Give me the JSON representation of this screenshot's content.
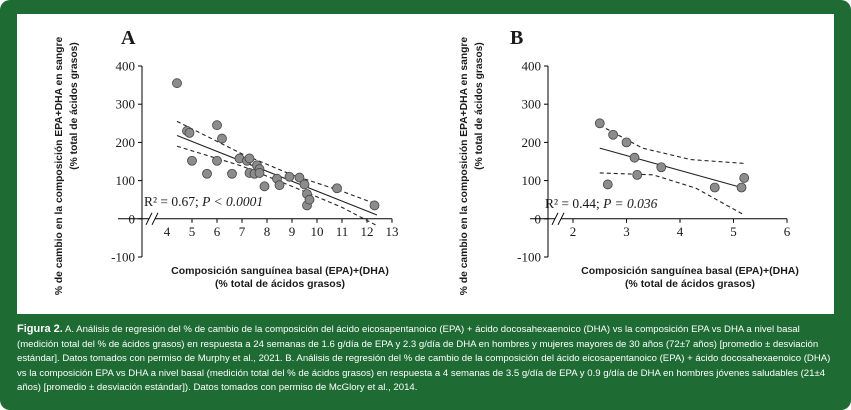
{
  "colors": {
    "border": "#1e6b34",
    "panel": "#ffffff",
    "point_fill": "#8c8c8c",
    "point_stroke": "#444444",
    "line": "#222222"
  },
  "chart_data": [
    {
      "type": "scatter",
      "panel_label": "A",
      "xlabel_line1": "Composición sanguínea basal (EPA)+(DHA)",
      "xlabel_line2": "(% total de ácidos grasos)",
      "ylabel_line1": "% de cambio en la composición EPA+DHA en sangre",
      "ylabel_line2": "(% total de ácidos grasos)",
      "xlim": [
        4,
        13
      ],
      "ylim": [
        -100,
        400
      ],
      "x_ticks": [
        "4",
        "5",
        "6",
        "7",
        "8",
        "9",
        "10",
        "11",
        "12",
        "13"
      ],
      "y_ticks": [
        "-100",
        "0",
        "100",
        "200",
        "300",
        "400"
      ],
      "axis_break": true,
      "annotation_r2": "R² = 0.67; ",
      "annotation_p": "P < 0.0001",
      "points": [
        {
          "x": 4.4,
          "y": 355
        },
        {
          "x": 4.8,
          "y": 230
        },
        {
          "x": 4.9,
          "y": 225
        },
        {
          "x": 5.0,
          "y": 152
        },
        {
          "x": 5.6,
          "y": 118
        },
        {
          "x": 6.0,
          "y": 245
        },
        {
          "x": 6.0,
          "y": 152
        },
        {
          "x": 6.2,
          "y": 210
        },
        {
          "x": 6.6,
          "y": 118
        },
        {
          "x": 6.9,
          "y": 158
        },
        {
          "x": 7.2,
          "y": 152
        },
        {
          "x": 7.3,
          "y": 158
        },
        {
          "x": 7.3,
          "y": 120
        },
        {
          "x": 7.5,
          "y": 118
        },
        {
          "x": 7.6,
          "y": 140
        },
        {
          "x": 7.7,
          "y": 130
        },
        {
          "x": 7.7,
          "y": 120
        },
        {
          "x": 7.9,
          "y": 85
        },
        {
          "x": 8.4,
          "y": 105
        },
        {
          "x": 8.5,
          "y": 88
        },
        {
          "x": 8.9,
          "y": 110
        },
        {
          "x": 9.3,
          "y": 108
        },
        {
          "x": 9.5,
          "y": 90
        },
        {
          "x": 9.6,
          "y": 65
        },
        {
          "x": 9.6,
          "y": 35
        },
        {
          "x": 9.7,
          "y": 50
        },
        {
          "x": 10.8,
          "y": 80
        },
        {
          "x": 12.3,
          "y": 35
        }
      ],
      "fit": {
        "x": [
          4.4,
          12.4
        ],
        "y": [
          218,
          10
        ]
      },
      "ci_upper": {
        "x": [
          4.4,
          7.0,
          9.0,
          11.0,
          12.4
        ],
        "y": [
          255,
          170,
          115,
          72,
          38
        ]
      },
      "ci_lower": {
        "x": [
          4.4,
          7.0,
          9.0,
          11.0,
          12.4
        ],
        "y": [
          190,
          138,
          85,
          30,
          -18
        ]
      }
    },
    {
      "type": "scatter",
      "panel_label": "B",
      "xlabel_line1": "Composición sanguínea basal (EPA)+(DHA)",
      "xlabel_line2": "(% total de ácidos grasos)",
      "ylabel_line1": "% de cambio en la composición EPA+DHA en sangre",
      "ylabel_line2": "(% total de ácidos grasos)",
      "xlim": [
        2,
        6
      ],
      "ylim": [
        -100,
        400
      ],
      "x_ticks": [
        "2",
        "3",
        "4",
        "5",
        "6"
      ],
      "y_ticks": [
        "-100",
        "0",
        "100",
        "200",
        "300",
        "400"
      ],
      "axis_break": true,
      "annotation_r2": "R² = 0.44; ",
      "annotation_p": "P = 0.036",
      "points": [
        {
          "x": 2.5,
          "y": 250
        },
        {
          "x": 2.75,
          "y": 220
        },
        {
          "x": 3.0,
          "y": 200
        },
        {
          "x": 3.15,
          "y": 160
        },
        {
          "x": 3.2,
          "y": 115
        },
        {
          "x": 3.65,
          "y": 135
        },
        {
          "x": 2.65,
          "y": 90
        },
        {
          "x": 4.65,
          "y": 82
        },
        {
          "x": 5.15,
          "y": 82
        },
        {
          "x": 5.2,
          "y": 107
        }
      ],
      "fit": {
        "x": [
          2.5,
          5.2
        ],
        "y": [
          185,
          80
        ]
      },
      "ci_upper": {
        "x": [
          2.5,
          3.3,
          4.2,
          5.2
        ],
        "y": [
          245,
          185,
          155,
          145
        ]
      },
      "ci_lower": {
        "x": [
          2.5,
          3.5,
          4.3,
          5.2
        ],
        "y": [
          120,
          115,
          80,
          10
        ]
      }
    }
  ],
  "caption": {
    "label": "Figura 2.",
    "text": " A. Análisis de regresión del % de cambio de la composición del ácido eicosapentanoico (EPA) + ácido docosahexaenoico (DHA)  vs la composición EPA vs DHA a nivel basal (medición total del % de ácidos grasos) en respuesta a 24 semanas de 1.6 g/día de EPA y 2.3 g/día de DHA en hombres y mujeres mayores de 30 años (72±7 años) [promedio ± desviación estándar]. Datos tomados con permiso de Murphy et al., 2021. B. Análisis de regresión del % de cambio de la composición del ácido eicosapentanoico (EPA) + ácido docosahexaenoico (DHA)  vs la composición EPA vs DHA a nivel basal (medición total del % de ácidos grasos) en respuesta a 4 semanas de 3.5 g/día de EPA y 0.9 g/día de DHA en hombres jóvenes saludables (21±4 años) [promedio ± desviación estándar]). Datos tomados con permiso de McGlory et al., 2014."
  }
}
